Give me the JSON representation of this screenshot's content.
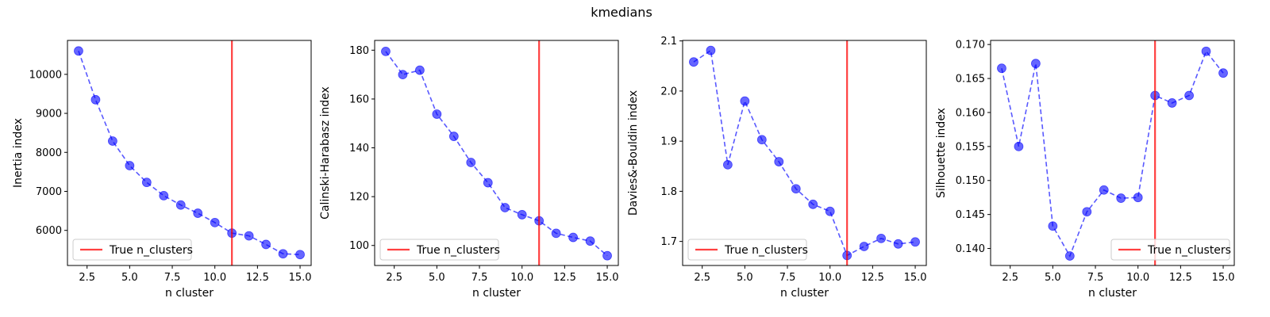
{
  "figure": {
    "title": "kmedians"
  },
  "colors": {
    "series": "#0000ff",
    "reference": "#ff0000",
    "axes": "#000000",
    "legend_edge": "#cccccc"
  },
  "chart_data": [
    {
      "type": "line",
      "xlabel": "n cluster",
      "ylabel": "Inertia index",
      "legend": "True n_clusters",
      "legend_position": "lower-left",
      "xlim": [
        1.35,
        15.65
      ],
      "ylim": [
        5100,
        10870
      ],
      "xticks": [
        2.5,
        5.0,
        7.5,
        10.0,
        12.5,
        15.0
      ],
      "xtick_labels": [
        "2.5",
        "5.0",
        "7.5",
        "10.0",
        "12.5",
        "15.0"
      ],
      "yticks": [
        6000,
        7000,
        8000,
        9000,
        10000
      ],
      "ytick_labels": [
        "6000",
        "7000",
        "8000",
        "9000",
        "10000"
      ],
      "reference_x": 11,
      "x": [
        2,
        3,
        4,
        5,
        6,
        7,
        8,
        9,
        10,
        11,
        12,
        13,
        14,
        15
      ],
      "y": [
        10600,
        9350,
        8290,
        7660,
        7230,
        6890,
        6650,
        6440,
        6200,
        5930,
        5860,
        5640,
        5400,
        5380
      ]
    },
    {
      "type": "line",
      "xlabel": "n cluster",
      "ylabel": "Calinski-Harabasz index",
      "legend": "True n_clusters",
      "legend_position": "lower-left",
      "xlim": [
        1.35,
        15.65
      ],
      "ylim": [
        91.8,
        184.0
      ],
      "xticks": [
        2.5,
        5.0,
        7.5,
        10.0,
        12.5,
        15.0
      ],
      "xtick_labels": [
        "2.5",
        "5.0",
        "7.5",
        "10.0",
        "12.5",
        "15.0"
      ],
      "yticks": [
        100,
        120,
        140,
        160,
        180
      ],
      "ytick_labels": [
        "100",
        "120",
        "140",
        "160",
        "180"
      ],
      "reference_x": 11,
      "x": [
        2,
        3,
        4,
        5,
        6,
        7,
        8,
        9,
        10,
        11,
        12,
        13,
        14,
        15
      ],
      "y": [
        179.5,
        170.0,
        171.8,
        153.8,
        144.7,
        134.0,
        125.7,
        115.5,
        112.6,
        110.1,
        105.0,
        103.3,
        101.8,
        95.8
      ]
    },
    {
      "type": "line",
      "xlabel": "n cluster",
      "ylabel": "Davies&-Bouldin index",
      "legend": "True n_clusters",
      "legend_position": "lower-left",
      "xlim": [
        1.35,
        15.65
      ],
      "ylim": [
        1.652,
        2.101
      ],
      "xticks": [
        2.5,
        5.0,
        7.5,
        10.0,
        12.5,
        15.0
      ],
      "xtick_labels": [
        "2.5",
        "5.0",
        "7.5",
        "10.0",
        "12.5",
        "15.0"
      ],
      "yticks": [
        1.7,
        1.8,
        1.9,
        2.0,
        2.1
      ],
      "ytick_labels": [
        "1.7",
        "1.8",
        "1.9",
        "2.0",
        "2.1"
      ],
      "reference_x": 11,
      "x": [
        2,
        3,
        4,
        5,
        6,
        7,
        8,
        9,
        10,
        11,
        12,
        13,
        14,
        15
      ],
      "y": [
        2.058,
        2.081,
        1.853,
        1.98,
        1.903,
        1.859,
        1.805,
        1.774,
        1.76,
        1.672,
        1.69,
        1.706,
        1.695,
        1.699
      ]
    },
    {
      "type": "line",
      "xlabel": "n cluster",
      "ylabel": "Silhouette index",
      "legend": "True n_clusters",
      "legend_position": "lower-right",
      "xlim": [
        1.35,
        15.65
      ],
      "ylim": [
        0.1375,
        0.1706
      ],
      "xticks": [
        2.5,
        5.0,
        7.5,
        10.0,
        12.5,
        15.0
      ],
      "xtick_labels": [
        "2.5",
        "5.0",
        "7.5",
        "10.0",
        "12.5",
        "15.0"
      ],
      "yticks": [
        0.14,
        0.145,
        0.15,
        0.155,
        0.16,
        0.165,
        0.17
      ],
      "ytick_labels": [
        "0.140",
        "0.145",
        "0.150",
        "0.155",
        "0.160",
        "0.165",
        "0.170"
      ],
      "reference_x": 11,
      "x": [
        2,
        3,
        4,
        5,
        6,
        7,
        8,
        9,
        10,
        11,
        12,
        13,
        14,
        15
      ],
      "y": [
        0.1665,
        0.155,
        0.1672,
        0.1433,
        0.1389,
        0.1454,
        0.1486,
        0.1474,
        0.1475,
        0.1625,
        0.1614,
        0.1625,
        0.169,
        0.1658
      ]
    }
  ]
}
